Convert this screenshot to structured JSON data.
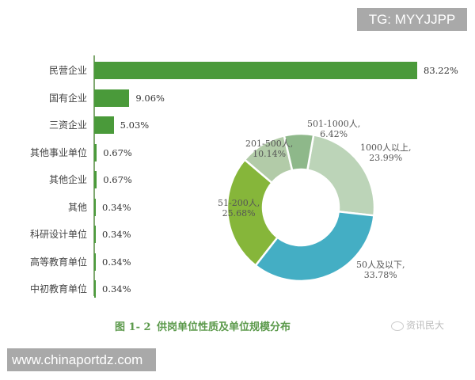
{
  "watermarks": {
    "tg": "TG: MYYJJPP",
    "url": "www.chinaportdz.com",
    "wechat": "资讯民大"
  },
  "caption": {
    "fig_no": "图 1- 2",
    "title": "供岗单位性质及单位规模分布"
  },
  "chart_data": [
    {
      "type": "bar",
      "orientation": "horizontal",
      "title": "供岗单位性质",
      "categories": [
        "民营企业",
        "国有企业",
        "三资企业",
        "其他事业单位",
        "其他企业",
        "其他",
        "科研设计单位",
        "高等教育单位",
        "中初教育单位"
      ],
      "values": [
        83.22,
        9.06,
        5.03,
        0.67,
        0.67,
        0.34,
        0.34,
        0.34,
        0.34
      ],
      "labels": [
        "83.22%",
        "9.06%",
        "5.03%",
        "0.67%",
        "0.67%",
        "0.34%",
        "0.34%",
        "0.34%",
        "0.34%"
      ],
      "xlabel": "",
      "ylabel": "",
      "unit": "%",
      "color": "#4a9a3a",
      "grid": false
    },
    {
      "type": "pie",
      "variant": "donut",
      "title": "单位规模分布",
      "categories": [
        "1000人以上",
        "50人及以下",
        "51-200人",
        "201-500人",
        "501-1000人"
      ],
      "values": [
        23.99,
        33.78,
        25.68,
        10.14,
        6.42
      ],
      "labels": [
        {
          "name": "1000人以上,",
          "pct": "23.99%"
        },
        {
          "name": "50人及以下,",
          "pct": "33.78%"
        },
        {
          "name": "51-200人,",
          "pct": "25.68%"
        },
        {
          "name": "201-500人,",
          "pct": "10.14%"
        },
        {
          "name": "501-1000人,",
          "pct": "6.42%"
        }
      ],
      "colors": [
        "#bcd4b8",
        "#44aec4",
        "#86b63a",
        "#b2cba8",
        "#8eb88a"
      ]
    }
  ]
}
